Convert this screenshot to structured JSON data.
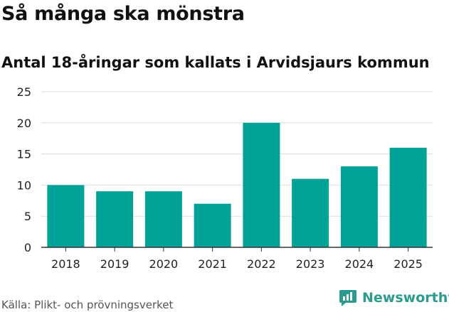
{
  "header": {
    "title": "Så många ska mönstra",
    "subtitle": "Antal 18-åringar som kallats i Arvidsjaurs kommun"
  },
  "footer": {
    "source": "Källa: Plikt- och prövningsverket",
    "brand": "Newsworthy"
  },
  "colors": {
    "bar": "#00a298",
    "grid": "#dddddd",
    "axis": "#333333",
    "brand": "#2b9a8f"
  },
  "icons": {
    "brand_logo": "newsworthy-logo-icon"
  },
  "chart_data": {
    "type": "bar",
    "categories": [
      "2018",
      "2019",
      "2020",
      "2021",
      "2022",
      "2023",
      "2024",
      "2025"
    ],
    "values": [
      10,
      9,
      9,
      7,
      20,
      11,
      13,
      16
    ],
    "title": "Så många ska mönstra",
    "subtitle": "Antal 18-åringar som kallats i Arvidsjaurs kommun",
    "xlabel": "",
    "ylabel": "",
    "ylim": [
      0,
      25
    ],
    "yticks": [
      0,
      5,
      10,
      15,
      20,
      25
    ],
    "grid": true,
    "legend": "none"
  }
}
